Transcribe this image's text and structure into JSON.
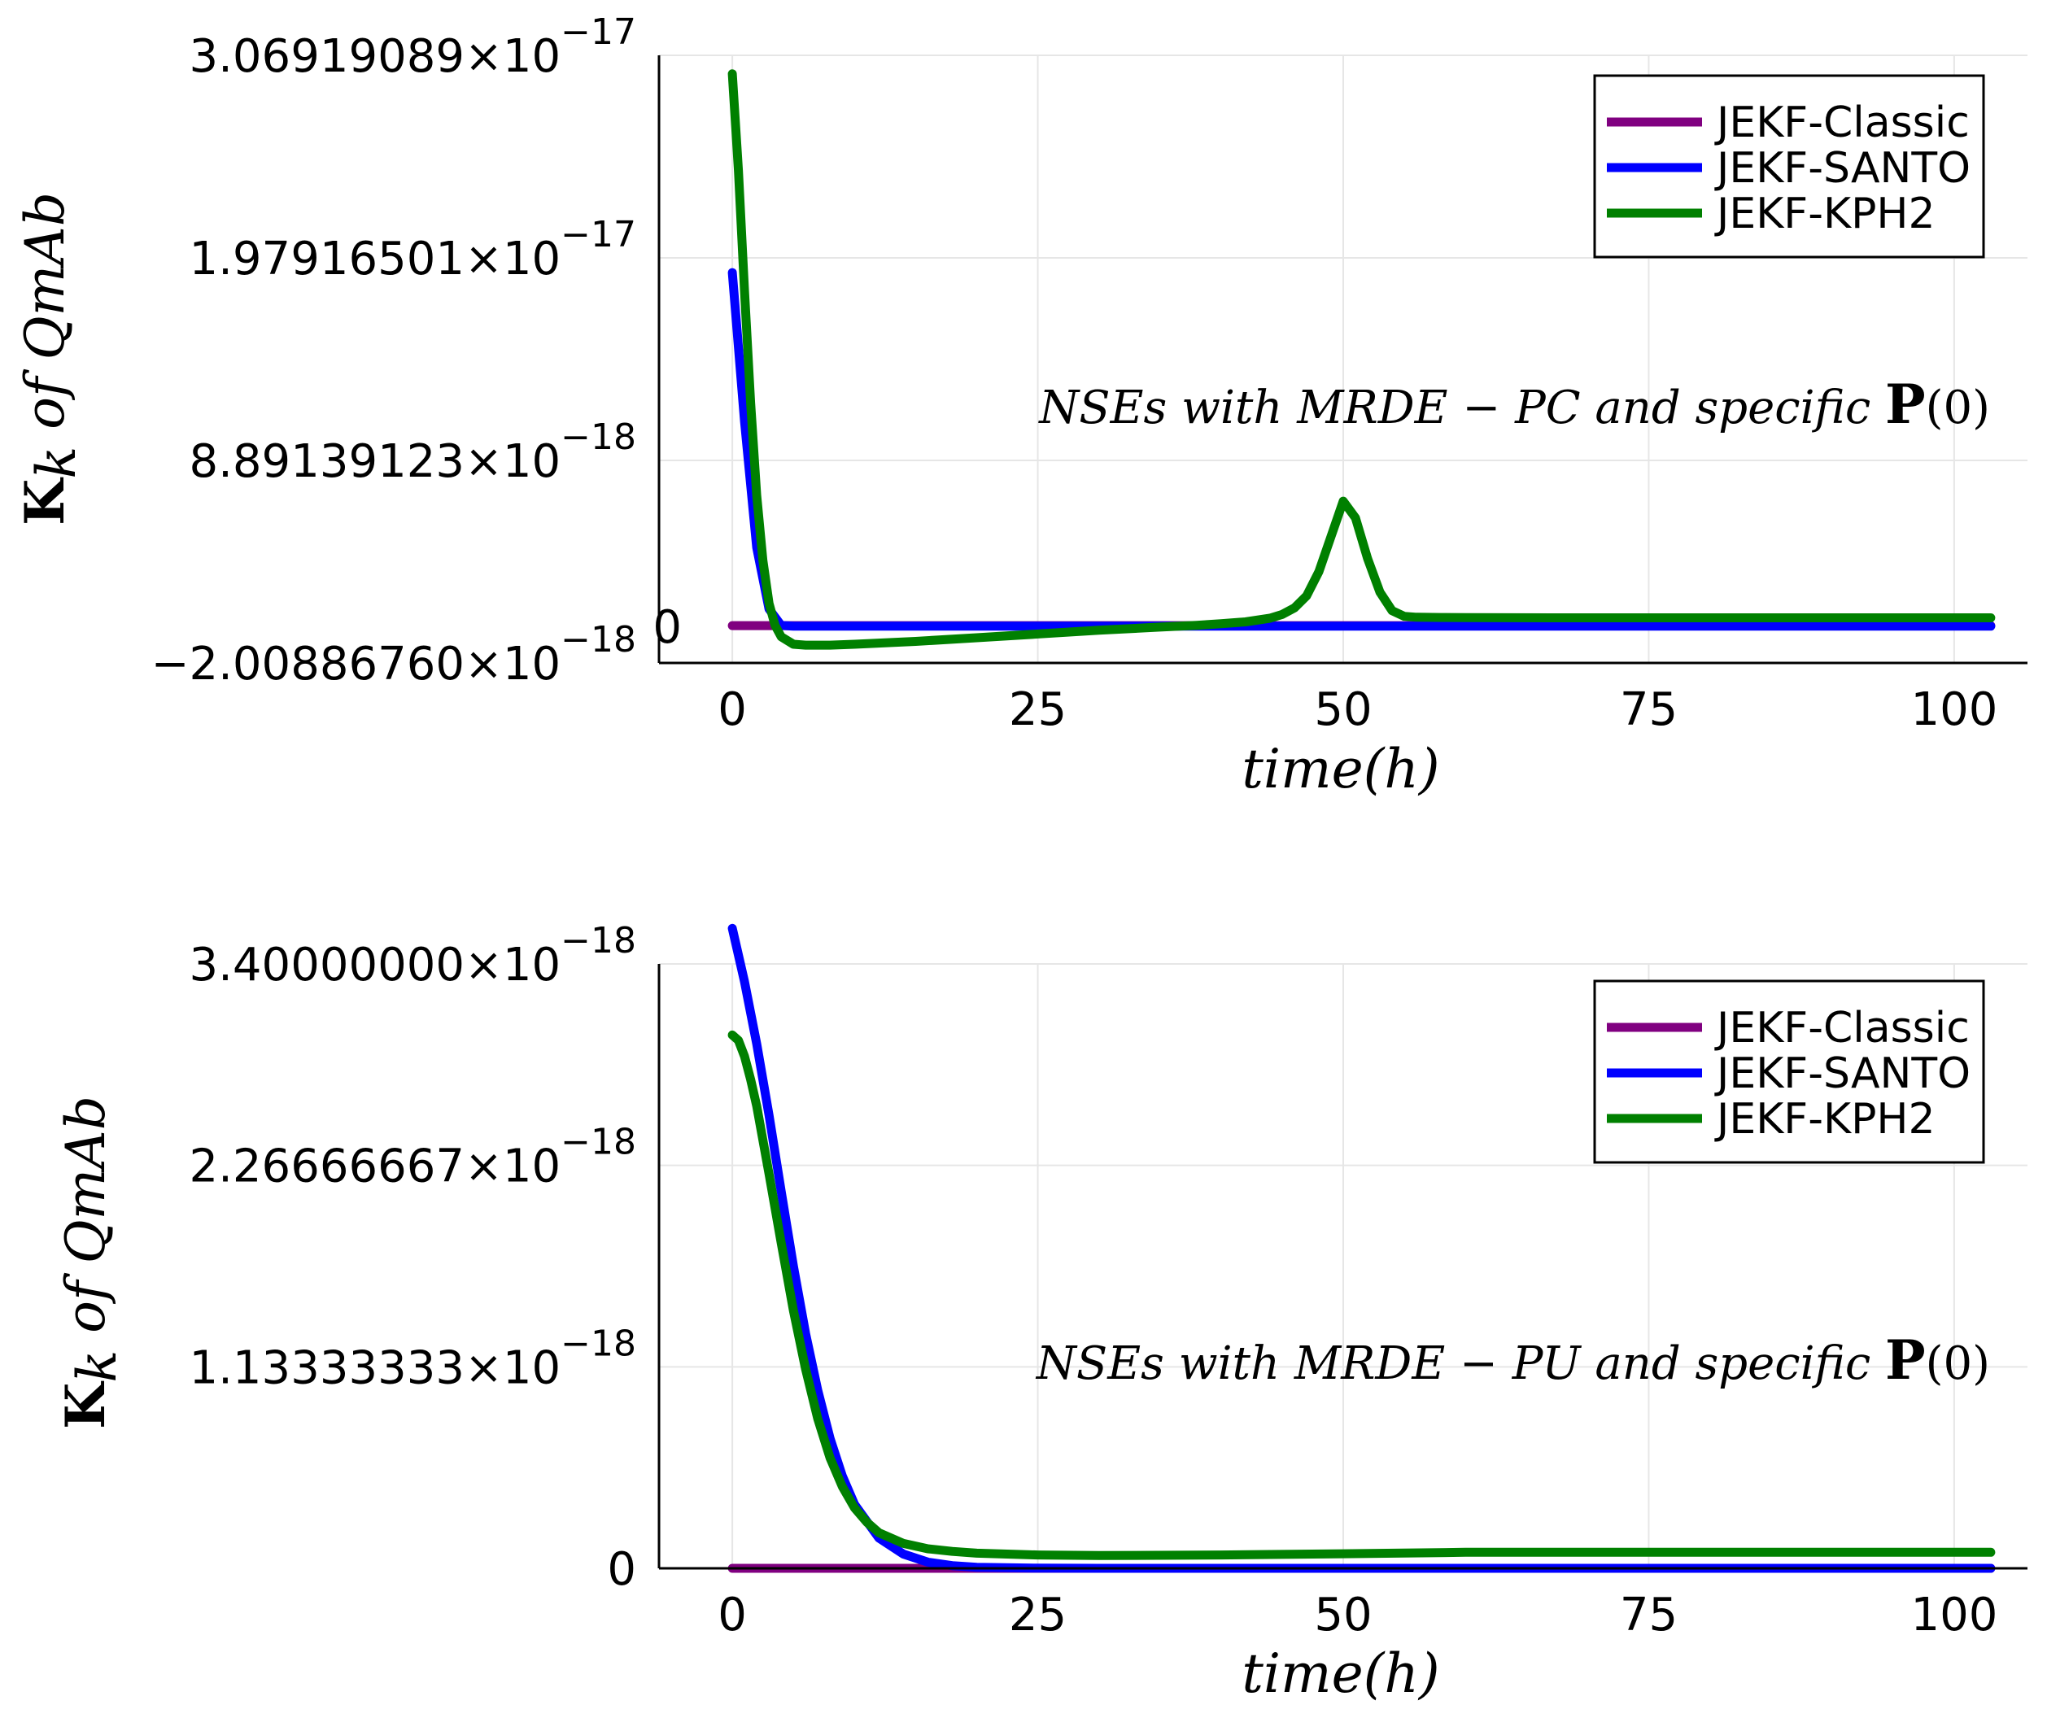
{
  "chart_data": [
    {
      "type": "line",
      "xlabel": "time(h)",
      "ylabel": "K_k of QmAb",
      "xlim": [
        -6,
        106
      ],
      "ylim": [
        -2.0088676e-18,
        3.06919089e-17
      ],
      "x_ticks": [
        0,
        25,
        50,
        75,
        100
      ],
      "x_tick_labels": [
        "0",
        "25",
        "50",
        "75",
        "100"
      ],
      "y_ticks": [
        {
          "value": 3.06919089e-17,
          "mantissa": "3.06919089×10",
          "exponent": "−17"
        },
        {
          "value": 1.97916501e-17,
          "mantissa": "1.97916501×10",
          "exponent": "−17"
        },
        {
          "value": 8.89139123e-18,
          "mantissa": "8.89139123×10",
          "exponent": "−18"
        },
        {
          "value": -2.0088676e-18,
          "mantissa": "−2.00886760×10",
          "exponent": "−18"
        }
      ],
      "zero_label": "0",
      "annotation": {
        "parts": [
          "NSEs with MRDE − PC and specific ",
          "P",
          "(0)"
        ]
      },
      "legend": {
        "position": "top-right"
      },
      "grid": true,
      "series": [
        {
          "name": "JEKF-Classic",
          "color": "#800080",
          "x": [
            0,
            103
          ],
          "y": [
            0,
            0
          ]
        },
        {
          "name": "JEKF-SANTO",
          "color": "#0000ff",
          "x": [
            0,
            1,
            2,
            3,
            4,
            5,
            6,
            8,
            10,
            20,
            40,
            60,
            80,
            103
          ],
          "y": [
            1.9e-17,
            1.1e-17,
            4.2e-18,
            9e-19,
            1e-20,
            -3e-20,
            -3e-20,
            -3e-20,
            -3e-20,
            -3e-20,
            -3e-20,
            -3e-20,
            -3e-20,
            -3e-20
          ]
        },
        {
          "name": "JEKF-KPH2",
          "color": "#008000",
          "x": [
            0,
            0.5,
            1,
            1.5,
            2,
            2.5,
            3,
            3.5,
            4,
            5,
            6,
            8,
            10,
            15,
            20,
            25,
            30,
            35,
            38,
            40,
            42,
            44,
            45,
            46,
            47,
            48,
            49,
            50,
            51,
            52,
            53,
            54,
            55,
            56,
            58,
            60,
            70,
            80,
            90,
            103
          ],
          "y": [
            2.97e-17,
            2.45e-17,
            1.8e-17,
            1.2e-17,
            7e-18,
            3.5e-18,
            1.2e-18,
            1e-20,
            -6e-19,
            -1e-18,
            -1.05e-18,
            -1.05e-18,
            -1e-18,
            -8.5e-19,
            -6.5e-19,
            -4.5e-19,
            -2.5e-19,
            -8e-20,
            2e-20,
            1e-19,
            2e-19,
            4e-19,
            6e-19,
            9.5e-19,
            1.6e-18,
            2.9e-18,
            4.8e-18,
            6.7e-18,
            5.8e-18,
            3.6e-18,
            1.8e-18,
            8e-19,
            5e-19,
            4.5e-19,
            4.4e-19,
            4.3e-19,
            4.2e-19,
            4.2e-19,
            4.2e-19,
            4.2e-19
          ]
        }
      ]
    },
    {
      "type": "line",
      "xlabel": "time(h)",
      "ylabel": "K_k of QmAb",
      "xlim": [
        -6,
        106
      ],
      "ylim": [
        0,
        3.4e-18
      ],
      "x_ticks": [
        0,
        25,
        50,
        75,
        100
      ],
      "x_tick_labels": [
        "0",
        "25",
        "50",
        "75",
        "100"
      ],
      "y_ticks": [
        {
          "value": 3.4e-18,
          "mantissa": "3.40000000×10",
          "exponent": "−18"
        },
        {
          "value": 2.26666667e-18,
          "mantissa": "2.26666667×10",
          "exponent": "−18"
        },
        {
          "value": 1.13333333e-18,
          "mantissa": "1.13333333×10",
          "exponent": "−18"
        },
        {
          "value": 0,
          "mantissa": "0",
          "exponent": ""
        }
      ],
      "annotation": {
        "parts": [
          "NSEs with MRDE − PU and specific ",
          "P",
          "(0)"
        ]
      },
      "legend": {
        "position": "top-right"
      },
      "grid": true,
      "series": [
        {
          "name": "JEKF-Classic",
          "color": "#800080",
          "x": [
            0,
            103
          ],
          "y": [
            0,
            0
          ]
        },
        {
          "name": "JEKF-SANTO",
          "color": "#0000ff",
          "x": [
            0,
            1,
            2,
            3,
            4,
            5,
            6,
            7,
            8,
            9,
            10,
            12,
            14,
            16,
            18,
            20,
            25,
            30,
            50,
            103
          ],
          "y": [
            3.6e-18,
            3.3e-18,
            2.95e-18,
            2.55e-18,
            2.12e-18,
            1.7e-18,
            1.32e-18,
            1e-18,
            7.3e-19,
            5.2e-19,
            3.6e-19,
            1.7e-19,
            8e-20,
            3.5e-20,
            1.5e-20,
            6e-21,
            1e-21,
            0,
            0,
            0
          ]
        },
        {
          "name": "JEKF-KPH2",
          "color": "#008000",
          "x": [
            0,
            0.5,
            1,
            1.5,
            2,
            3,
            4,
            5,
            6,
            7,
            8,
            9,
            10,
            11,
            12,
            14,
            16,
            18,
            20,
            25,
            30,
            40,
            50,
            60,
            70,
            80,
            90,
            103
          ],
          "y": [
            3e-18,
            2.97e-18,
            2.88e-18,
            2.75e-18,
            2.6e-18,
            2.22e-18,
            1.83e-18,
            1.45e-18,
            1.12e-18,
            8.4e-19,
            6.2e-19,
            4.6e-19,
            3.4e-19,
            2.6e-19,
            2e-19,
            1.4e-19,
            1.1e-19,
            9.5e-20,
            8.5e-20,
            7.5e-20,
            7.2e-20,
            7.5e-20,
            8.2e-20,
            9e-20,
            9e-20,
            9e-20,
            9e-20,
            9e-20
          ]
        }
      ]
    }
  ]
}
